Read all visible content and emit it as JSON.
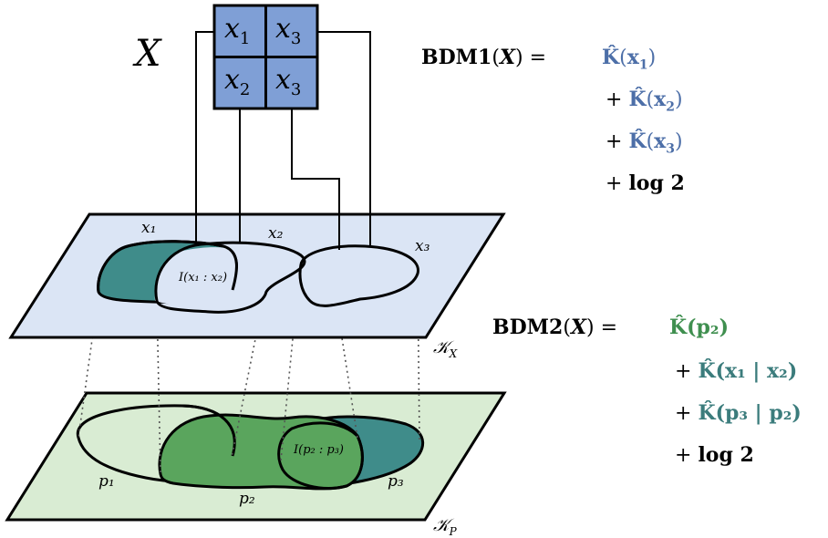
{
  "matrix": {
    "label": "X",
    "cells": [
      {
        "var": "x",
        "sub": "1"
      },
      {
        "var": "x",
        "sub": "3"
      },
      {
        "var": "x",
        "sub": "2"
      },
      {
        "var": "x",
        "sub": "3"
      }
    ]
  },
  "planes": {
    "upper": {
      "regions": [
        "x₁",
        "x₂",
        "x₃"
      ],
      "intersection": "I(x₁ : x₂)",
      "space_label": {
        "symbol": "𝒦",
        "sub": "X"
      }
    },
    "lower": {
      "regions": [
        "p₁",
        "p₂",
        "p₃"
      ],
      "intersection": "I(p₂ : p₃)",
      "space_label": {
        "symbol": "𝒦",
        "sub": "P"
      }
    }
  },
  "bdm1": {
    "lhs_name": "BDM1",
    "lhs_arg": "X",
    "equals": "=",
    "terms": [
      {
        "prefix": "",
        "K": "K̂",
        "arg_main": "x",
        "arg_sub": "1"
      },
      {
        "prefix": "+",
        "K": "K̂",
        "arg_main": "x",
        "arg_sub": "2"
      },
      {
        "prefix": "+",
        "K": "K̂",
        "arg_main": "x",
        "arg_sub": "3"
      }
    ],
    "final": {
      "prefix": "+",
      "text": "log 2"
    }
  },
  "bdm2": {
    "lhs_name": "BDM2",
    "lhs_arg": "X",
    "equals": "=",
    "terms": [
      {
        "prefix": "",
        "K": "K̂",
        "arg": "p₂"
      },
      {
        "prefix": "+",
        "K": "K̂",
        "arg": "x₁ | x₂"
      },
      {
        "prefix": "+",
        "K": "K̂",
        "arg": "p₃ | p₂"
      }
    ],
    "final": {
      "prefix": "+",
      "text": "log 2"
    }
  },
  "colors": {
    "blue_text": "#4d6fa8",
    "green_text": "#3f8f4f",
    "teal_text": "#3b7c7c",
    "matrix_fill": "#7f9fd6",
    "upper_plane": "#dbe5f5",
    "lower_plane": "#d9ecd3",
    "teal_region": "#3f8c8a",
    "green_region": "#5aa55d"
  }
}
